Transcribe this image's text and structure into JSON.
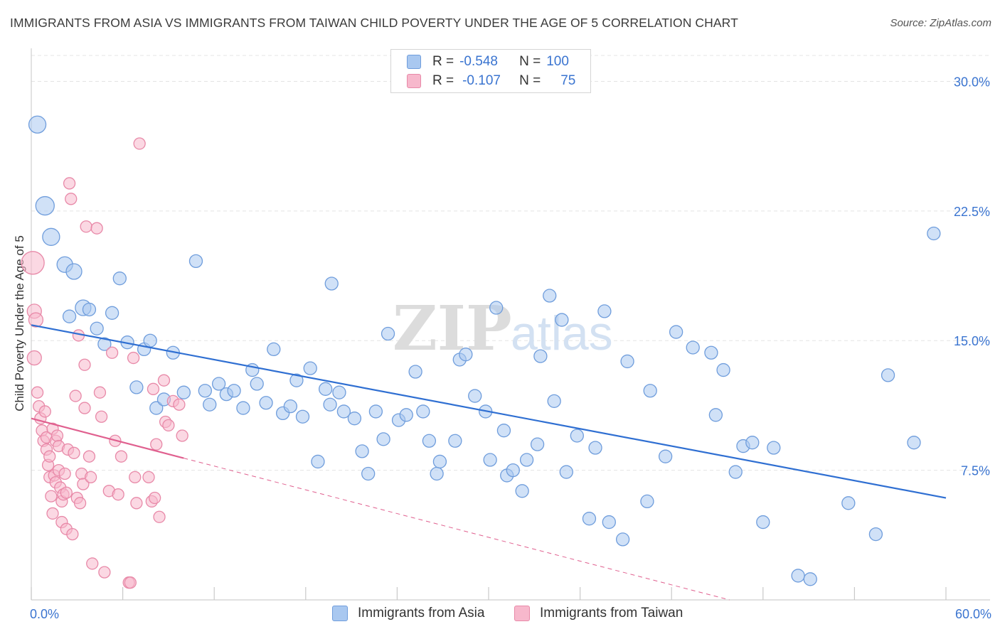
{
  "title": "IMMIGRANTS FROM ASIA VS IMMIGRANTS FROM TAIWAN CHILD POVERTY UNDER THE AGE OF 5 CORRELATION CHART",
  "source": "Source: ZipAtlas.com",
  "watermark": {
    "zip": "ZIP",
    "atlas": "atlas"
  },
  "legend_stats": {
    "asia": {
      "r_label": "R =",
      "r_value": "-0.548",
      "n_label": "N =",
      "n_value": "100"
    },
    "taiwan": {
      "r_label": "R =",
      "r_value": "-0.107",
      "n_label": "N =",
      "n_value": "75"
    }
  },
  "colors": {
    "asia_fill": "#a9c8f0",
    "asia_stroke": "#6f9ddc",
    "asia_line": "#2f6fd2",
    "taiwan_fill": "#f7b8cc",
    "taiwan_stroke": "#e889a8",
    "taiwan_line": "#e0608f",
    "tick_label": "#3a74d0",
    "grid": "#e4e4e4"
  },
  "chart_data": {
    "type": "scatter",
    "title": "IMMIGRANTS FROM ASIA VS IMMIGRANTS FROM TAIWAN CHILD POVERTY UNDER THE AGE OF 5 CORRELATION CHART",
    "xlabel": "",
    "ylabel": "Child Poverty Under the Age of 5",
    "xlim": [
      0,
      60
    ],
    "ylim": [
      0,
      31.5
    ],
    "x_tick_labels": [
      "0.0%",
      "60.0%"
    ],
    "y_ticks": [
      7.5,
      15.0,
      22.5,
      30.0
    ],
    "y_tick_labels": [
      "7.5%",
      "15.0%",
      "22.5%",
      "30.0%"
    ],
    "grid": true,
    "legend_position": "bottom",
    "series": [
      {
        "name": "Immigrants from Asia",
        "points": [
          [
            0.4,
            27.5
          ],
          [
            0.9,
            22.8
          ],
          [
            1.3,
            21.0
          ],
          [
            2.2,
            19.4
          ],
          [
            2.8,
            19.0
          ],
          [
            3.4,
            16.9
          ],
          [
            3.8,
            16.8
          ],
          [
            4.3,
            15.7
          ],
          [
            4.8,
            14.8
          ],
          [
            5.3,
            16.6
          ],
          [
            5.8,
            18.6
          ],
          [
            6.3,
            14.9
          ],
          [
            6.9,
            12.3
          ],
          [
            7.4,
            14.5
          ],
          [
            7.8,
            15.0
          ],
          [
            8.2,
            11.1
          ],
          [
            8.7,
            11.6
          ],
          [
            9.3,
            14.3
          ],
          [
            10.0,
            12.0
          ],
          [
            10.8,
            19.6
          ],
          [
            11.4,
            12.1
          ],
          [
            11.7,
            11.3
          ],
          [
            12.3,
            12.5
          ],
          [
            12.8,
            11.9
          ],
          [
            13.3,
            12.1
          ],
          [
            13.9,
            11.1
          ],
          [
            14.5,
            13.3
          ],
          [
            14.8,
            12.5
          ],
          [
            15.4,
            11.4
          ],
          [
            15.9,
            14.5
          ],
          [
            16.5,
            10.8
          ],
          [
            17.0,
            11.2
          ],
          [
            17.4,
            12.7
          ],
          [
            17.8,
            10.6
          ],
          [
            18.3,
            13.4
          ],
          [
            18.8,
            8.0
          ],
          [
            19.3,
            12.2
          ],
          [
            19.6,
            11.3
          ],
          [
            20.2,
            12.0
          ],
          [
            20.5,
            10.9
          ],
          [
            21.2,
            10.5
          ],
          [
            21.7,
            8.6
          ],
          [
            22.1,
            7.3
          ],
          [
            22.6,
            10.9
          ],
          [
            23.1,
            9.3
          ],
          [
            23.4,
            15.4
          ],
          [
            24.1,
            10.4
          ],
          [
            24.6,
            10.7
          ],
          [
            25.2,
            13.2
          ],
          [
            25.7,
            10.9
          ],
          [
            26.1,
            9.2
          ],
          [
            26.6,
            7.3
          ],
          [
            26.8,
            8.0
          ],
          [
            27.8,
            9.2
          ],
          [
            28.1,
            13.9
          ],
          [
            28.5,
            14.2
          ],
          [
            29.1,
            11.8
          ],
          [
            29.8,
            10.9
          ],
          [
            30.1,
            8.1
          ],
          [
            30.5,
            16.9
          ],
          [
            31.0,
            9.8
          ],
          [
            31.2,
            7.2
          ],
          [
            31.6,
            7.5
          ],
          [
            32.2,
            6.3
          ],
          [
            32.5,
            8.1
          ],
          [
            33.2,
            9.0
          ],
          [
            34.0,
            17.6
          ],
          [
            34.3,
            11.5
          ],
          [
            34.8,
            16.2
          ],
          [
            35.1,
            7.4
          ],
          [
            35.8,
            9.5
          ],
          [
            36.6,
            4.7
          ],
          [
            37.0,
            8.8
          ],
          [
            37.6,
            16.7
          ],
          [
            37.9,
            4.5
          ],
          [
            38.8,
            3.5
          ],
          [
            39.1,
            13.8
          ],
          [
            40.4,
            5.7
          ],
          [
            40.6,
            12.1
          ],
          [
            41.6,
            8.3
          ],
          [
            42.3,
            15.5
          ],
          [
            43.4,
            14.6
          ],
          [
            44.6,
            14.3
          ],
          [
            44.9,
            10.7
          ],
          [
            45.4,
            13.3
          ],
          [
            46.2,
            7.4
          ],
          [
            46.7,
            8.9
          ],
          [
            47.3,
            9.1
          ],
          [
            48.0,
            4.5
          ],
          [
            48.7,
            8.8
          ],
          [
            50.3,
            1.4
          ],
          [
            51.1,
            1.2
          ],
          [
            53.6,
            5.6
          ],
          [
            55.4,
            3.8
          ],
          [
            56.2,
            13.0
          ],
          [
            57.9,
            9.1
          ],
          [
            59.2,
            21.2
          ],
          [
            2.5,
            16.4
          ],
          [
            19.7,
            18.3
          ],
          [
            33.4,
            14.1
          ]
        ]
      },
      {
        "name": "Immigrants from Taiwan",
        "points": [
          [
            0.1,
            19.5
          ],
          [
            0.2,
            16.7
          ],
          [
            0.2,
            14.0
          ],
          [
            0.3,
            16.2
          ],
          [
            0.4,
            12.0
          ],
          [
            0.5,
            11.2
          ],
          [
            0.6,
            10.5
          ],
          [
            0.7,
            9.8
          ],
          [
            0.8,
            9.2
          ],
          [
            0.9,
            10.9
          ],
          [
            1.0,
            8.7
          ],
          [
            1.0,
            9.4
          ],
          [
            1.1,
            7.8
          ],
          [
            1.2,
            7.1
          ],
          [
            1.2,
            8.3
          ],
          [
            1.3,
            6.0
          ],
          [
            1.4,
            5.0
          ],
          [
            1.4,
            9.9
          ],
          [
            1.5,
            7.2
          ],
          [
            1.6,
            6.8
          ],
          [
            1.6,
            9.2
          ],
          [
            1.7,
            9.5
          ],
          [
            1.8,
            7.5
          ],
          [
            1.8,
            8.9
          ],
          [
            1.9,
            6.5
          ],
          [
            2.0,
            5.7
          ],
          [
            2.0,
            4.5
          ],
          [
            2.1,
            6.1
          ],
          [
            2.2,
            7.3
          ],
          [
            2.3,
            4.1
          ],
          [
            2.3,
            6.2
          ],
          [
            2.4,
            8.7
          ],
          [
            2.5,
            24.1
          ],
          [
            2.6,
            23.2
          ],
          [
            2.7,
            3.8
          ],
          [
            2.8,
            8.5
          ],
          [
            2.9,
            11.8
          ],
          [
            3.0,
            5.9
          ],
          [
            3.1,
            15.3
          ],
          [
            3.2,
            5.6
          ],
          [
            3.3,
            7.3
          ],
          [
            3.4,
            6.7
          ],
          [
            3.5,
            13.6
          ],
          [
            3.5,
            11.1
          ],
          [
            3.6,
            21.6
          ],
          [
            3.8,
            8.3
          ],
          [
            3.9,
            7.1
          ],
          [
            4.0,
            2.1
          ],
          [
            4.3,
            21.5
          ],
          [
            4.5,
            12.0
          ],
          [
            4.6,
            10.6
          ],
          [
            4.8,
            1.6
          ],
          [
            5.1,
            6.3
          ],
          [
            5.3,
            14.3
          ],
          [
            5.5,
            9.2
          ],
          [
            5.7,
            6.1
          ],
          [
            5.9,
            8.3
          ],
          [
            6.4,
            1.0
          ],
          [
            6.5,
            1.0
          ],
          [
            6.7,
            14.0
          ],
          [
            6.8,
            7.1
          ],
          [
            6.9,
            5.6
          ],
          [
            7.1,
            26.4
          ],
          [
            7.7,
            7.1
          ],
          [
            7.9,
            5.7
          ],
          [
            8.1,
            5.9
          ],
          [
            8.0,
            12.2
          ],
          [
            8.2,
            9.0
          ],
          [
            8.4,
            4.8
          ],
          [
            8.7,
            12.7
          ],
          [
            8.8,
            10.3
          ],
          [
            9.0,
            10.1
          ],
          [
            9.3,
            11.5
          ],
          [
            9.7,
            11.3
          ],
          [
            9.9,
            9.5
          ]
        ]
      }
    ],
    "trendlines": [
      {
        "series": "Immigrants from Asia",
        "x": [
          0,
          60
        ],
        "y": [
          15.9,
          5.9
        ],
        "style": "solid"
      },
      {
        "series": "Immigrants from Taiwan",
        "x": [
          0,
          10
        ],
        "y": [
          10.5,
          8.2
        ],
        "style": "solid"
      },
      {
        "series": "Immigrants from Taiwan",
        "x": [
          10,
          45.8
        ],
        "y": [
          8.2,
          0
        ],
        "style": "dashed"
      }
    ]
  }
}
